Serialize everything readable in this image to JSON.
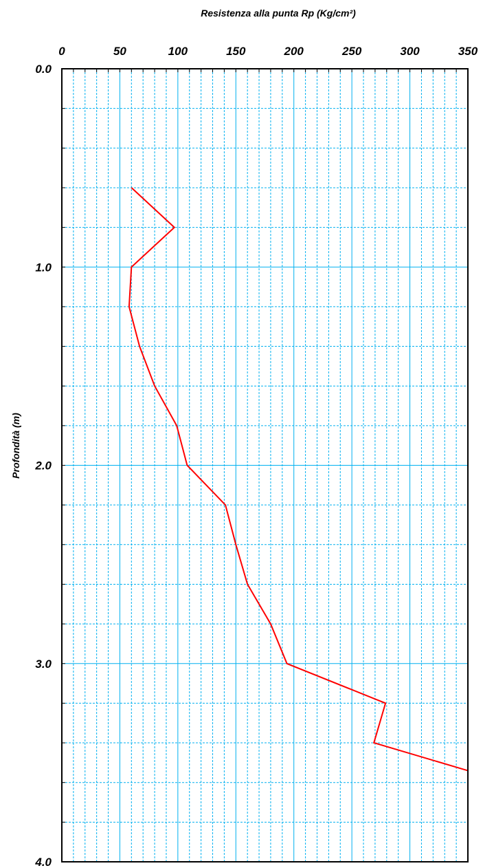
{
  "chart_data": {
    "type": "line",
    "title": "Resistenza alla punta Rp (Kg/cm²)",
    "xlabel": "Resistenza alla punta Rp (Kg/cm²)",
    "ylabel": "Profondità (m)",
    "x_axis_position": "top",
    "y_axis_inverted": true,
    "xlim": [
      0,
      350
    ],
    "ylim": [
      0.0,
      4.0
    ],
    "x_ticks": [
      "0",
      "50",
      "100",
      "150",
      "200",
      "250",
      "300",
      "350"
    ],
    "y_ticks": [
      "0.0",
      "1.0",
      "2.0",
      "3.0",
      "4.0"
    ],
    "x_minor_step": 10,
    "y_minor_step": 0.2,
    "grid": true,
    "grid_color": "#00b0f0",
    "series": [
      {
        "color": "#ff0000",
        "points": [
          [
            60,
            0.6
          ],
          [
            97,
            0.8
          ],
          [
            60,
            1.0
          ],
          [
            58,
            1.2
          ],
          [
            67,
            1.4
          ],
          [
            80,
            1.6
          ],
          [
            99,
            1.8
          ],
          [
            108,
            2.0
          ],
          [
            141,
            2.2
          ],
          [
            150,
            2.4
          ],
          [
            160,
            2.6
          ],
          [
            180,
            2.8
          ],
          [
            194,
            3.0
          ],
          [
            279,
            3.2
          ],
          [
            269,
            3.4
          ],
          [
            350,
            3.54
          ]
        ]
      }
    ]
  }
}
